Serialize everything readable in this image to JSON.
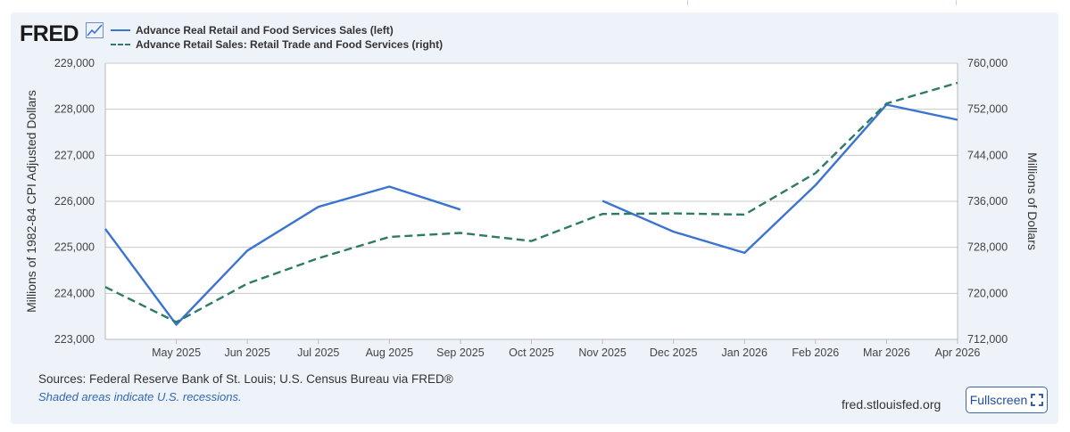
{
  "header": {
    "logo_text": "FRED",
    "logo_icon": "chart-line-icon"
  },
  "legend": [
    {
      "label": "Advance Real Retail and Food Services Sales (left)",
      "color": "#3b73d1",
      "style": "solid"
    },
    {
      "label": "Advance Retail Sales: Retail Trade and Food Services (right)",
      "color": "#2d7a67",
      "style": "dashed"
    }
  ],
  "chart_data": {
    "type": "line",
    "x": [
      "Apr 2025",
      "May 2025",
      "Jun 2025",
      "Jul 2025",
      "Aug 2025",
      "Sep 2025",
      "Oct 2025",
      "Nov 2025",
      "Dec 2025",
      "Jan 2026",
      "Feb 2026",
      "Mar 2026",
      "Apr 2026"
    ],
    "x_tick_labels": [
      "May 2025",
      "Jun 2025",
      "Jul 2025",
      "Aug 2025",
      "Sep 2025",
      "Oct 2025",
      "Nov 2025",
      "Dec 2025",
      "Jan 2026",
      "Feb 2026",
      "Mar 2026",
      "Apr 2026"
    ],
    "series": [
      {
        "name": "Advance Real Retail and Food Services Sales (left)",
        "axis": "left",
        "color": "#3b73d1",
        "style": "solid",
        "values": [
          225400,
          223320,
          224930,
          225880,
          226320,
          225820,
          null,
          226010,
          225340,
          224880,
          226350,
          228100,
          227770
        ]
      },
      {
        "name": "Advance Retail Sales: Retail Trade and Food Services (right)",
        "axis": "right",
        "color": "#2d7a67",
        "style": "dashed",
        "values": [
          721100,
          715000,
          721700,
          726100,
          729800,
          730500,
          729100,
          733800,
          733900,
          733700,
          740900,
          753000,
          756600
        ]
      }
    ],
    "y_left": {
      "label": "Millions of 1982-84 CPI Adjusted Dollars",
      "range": [
        223000,
        229000
      ],
      "ticks": [
        223000,
        224000,
        225000,
        226000,
        227000,
        228000,
        229000
      ],
      "tick_labels": [
        "223,000",
        "224,000",
        "225,000",
        "226,000",
        "227,000",
        "228,000",
        "229,000"
      ]
    },
    "y_right": {
      "label": "Millions of Dollars",
      "range": [
        712000,
        760000
      ],
      "ticks": [
        712000,
        720000,
        728000,
        736000,
        744000,
        752000,
        760000
      ],
      "tick_labels": [
        "712,000",
        "720,000",
        "728,000",
        "736,000",
        "744,000",
        "752,000",
        "760,000"
      ]
    },
    "grid": true
  },
  "footer": {
    "sources": "Sources: Federal Reserve Bank of St. Louis; U.S. Census Bureau via FRED®",
    "note": "Shaded areas indicate U.S. recessions.",
    "site": "fred.stlouisfed.org",
    "fullscreen_label": "Fullscreen",
    "fullscreen_icon": "expand-icon"
  }
}
